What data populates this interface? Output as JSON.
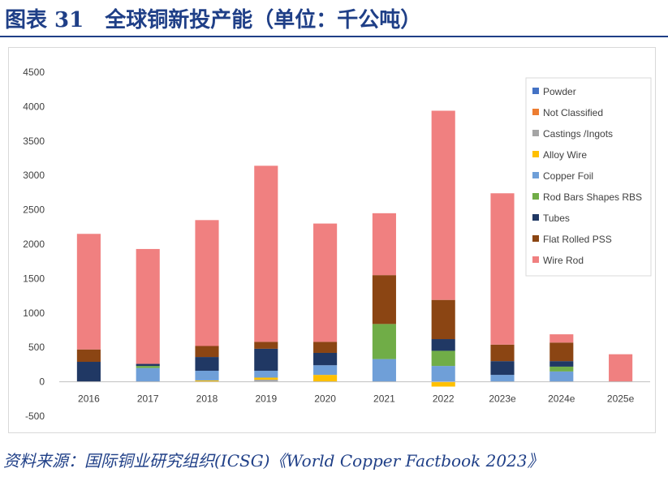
{
  "figure": {
    "title": "图表 31　全球铜新投产能（单位：千公吨）",
    "source": "资料来源：国际铜业研究组织(ICSG)《World Copper Factbook 2023》"
  },
  "colors": {
    "title": "#1f3f87",
    "axis": "#bfbfbf"
  },
  "chart_data": {
    "type": "bar",
    "stacked": true,
    "categories": [
      "2016",
      "2017",
      "2018",
      "2019",
      "2020",
      "2021",
      "2022",
      "2023e",
      "2024e",
      "2025e"
    ],
    "ylim": [
      -500,
      4500
    ],
    "yticks": [
      -500,
      0,
      500,
      1000,
      1500,
      2000,
      2500,
      3000,
      3500,
      4000,
      4500
    ],
    "grid": false,
    "legend": "top-right",
    "series": [
      {
        "name": "Powder",
        "color": "#4472c4",
        "values": [
          0,
          0,
          0,
          0,
          0,
          0,
          0,
          0,
          0,
          0
        ]
      },
      {
        "name": "Not Classified",
        "color": "#ed7d31",
        "values": [
          0,
          0,
          0,
          0,
          0,
          0,
          0,
          0,
          0,
          0
        ]
      },
      {
        "name": "Castings /Ingots",
        "color": "#a5a5a5",
        "values": [
          0,
          0,
          0,
          30,
          0,
          0,
          0,
          0,
          0,
          0
        ]
      },
      {
        "name": "Alloy Wire",
        "color": "#ffc000",
        "values": [
          0,
          0,
          20,
          30,
          100,
          0,
          -70,
          0,
          0,
          0
        ]
      },
      {
        "name": "Copper Foil",
        "color": "#6f9fd8",
        "values": [
          0,
          200,
          140,
          100,
          140,
          330,
          230,
          100,
          150,
          0
        ]
      },
      {
        "name": "Rod Bars Shapes RBS",
        "color": "#70ad47",
        "values": [
          0,
          30,
          0,
          0,
          0,
          510,
          220,
          0,
          70,
          0
        ]
      },
      {
        "name": "Tubes",
        "color": "#203864",
        "values": [
          290,
          30,
          200,
          320,
          180,
          0,
          170,
          200,
          80,
          0
        ]
      },
      {
        "name": "Flat Rolled PSS",
        "color": "#8b4513",
        "values": [
          180,
          0,
          160,
          100,
          160,
          710,
          570,
          240,
          270,
          0
        ]
      },
      {
        "name": "Wire Rod",
        "color": "#f08080",
        "values": [
          1680,
          1670,
          1830,
          2560,
          1720,
          900,
          2750,
          2200,
          120,
          400
        ]
      }
    ]
  }
}
